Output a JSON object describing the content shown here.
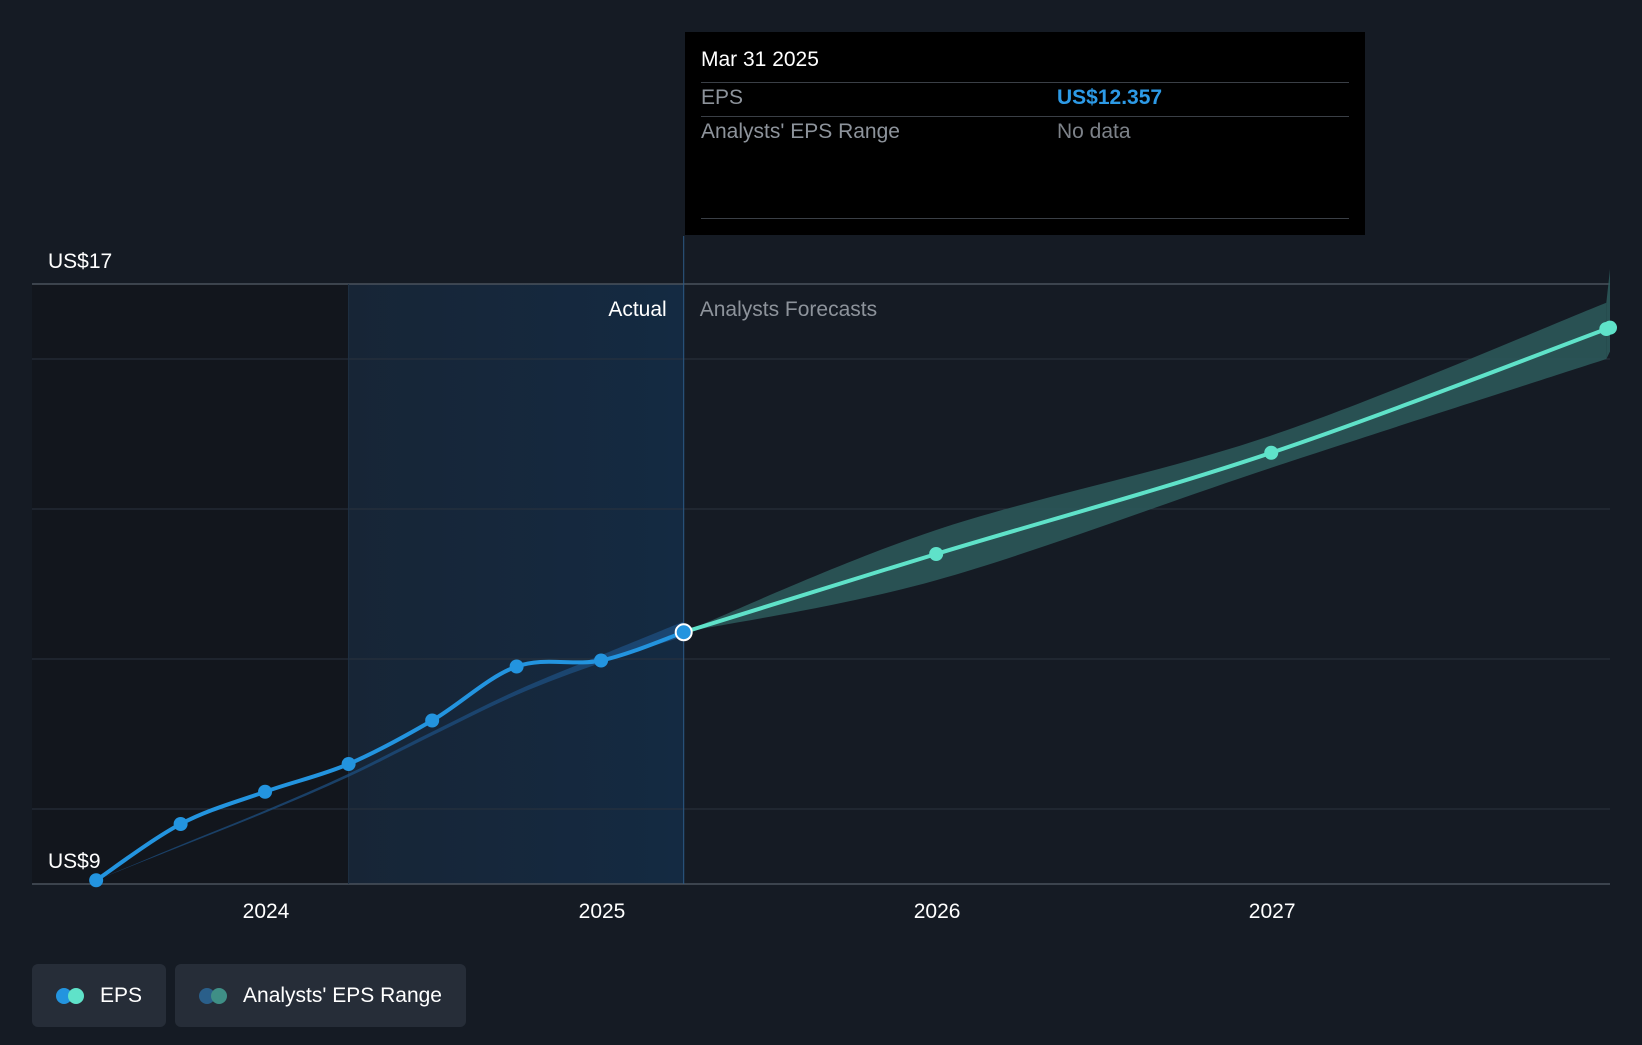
{
  "chart_data": {
    "type": "line",
    "y_axis": {
      "min": 9,
      "max": 17,
      "top_label": "US$17",
      "bottom_label": "US$9"
    },
    "x_axis": {
      "ticks": [
        "2024",
        "2025",
        "2026",
        "2027"
      ]
    },
    "regions": {
      "actual_label": "Actual",
      "forecast_label": "Analysts Forecasts"
    },
    "series": [
      {
        "name": "EPS",
        "kind": "actual",
        "color": "#2394df",
        "points": [
          {
            "x": "2023-06-30",
            "y": 9.05
          },
          {
            "x": "2023-09-30",
            "y": 9.8
          },
          {
            "x": "2023-12-31",
            "y": 10.23
          },
          {
            "x": "2024-03-31",
            "y": 10.6
          },
          {
            "x": "2024-06-30",
            "y": 11.18
          },
          {
            "x": "2024-09-30",
            "y": 11.9
          },
          {
            "x": "2024-12-31",
            "y": 11.98
          },
          {
            "x": "2025-03-31",
            "y": 12.357
          }
        ]
      },
      {
        "name": "EPS",
        "kind": "forecast",
        "color": "#5fe2c9",
        "points": [
          {
            "x": "2025-03-31",
            "y": 12.357
          },
          {
            "x": "2025-12-31",
            "y": 13.4
          },
          {
            "x": "2026-12-31",
            "y": 14.75
          },
          {
            "x": "2027-12-31",
            "y": 16.4
          }
        ]
      }
    ],
    "forecast_range": {
      "name": "Analysts' EPS Range",
      "color": "#2d5a5c",
      "points": [
        {
          "x": "2025-03-31",
          "low": 12.357,
          "high": 12.357
        },
        {
          "x": "2025-12-31",
          "low": 13.05,
          "high": 13.72
        },
        {
          "x": "2026-12-31",
          "low": 14.55,
          "high": 14.98
        },
        {
          "x": "2027-12-31",
          "low": 16.0,
          "high": 16.75
        }
      ]
    },
    "past_range_band": {
      "color": "#1e4f80",
      "points": [
        {
          "x": "2023-06-30",
          "low": 9.05,
          "high": 9.05
        },
        {
          "x": "2023-09-30",
          "low": 9.5,
          "high": 9.52
        },
        {
          "x": "2023-12-31",
          "low": 9.95,
          "high": 9.98
        },
        {
          "x": "2024-03-31",
          "low": 10.43,
          "high": 10.47
        },
        {
          "x": "2024-06-30",
          "low": 10.98,
          "high": 11.03
        },
        {
          "x": "2024-09-30",
          "low": 11.52,
          "high": 11.58
        },
        {
          "x": "2024-12-31",
          "low": 11.95,
          "high": 12.05
        },
        {
          "x": "2025-03-31",
          "low": 12.3,
          "high": 12.5
        }
      ]
    },
    "grid": true
  },
  "tooltip": {
    "date": "Mar 31 2025",
    "rows": [
      {
        "label": "EPS",
        "value": "US$12.357",
        "value_color": "#2d9ae6"
      },
      {
        "label": "Analysts' EPS Range",
        "value": "No data",
        "value_color": "#7d8289"
      }
    ]
  },
  "legend": {
    "items": [
      {
        "label": "EPS",
        "colors": [
          "#2394df",
          "#5fe2c9"
        ]
      },
      {
        "label": "Analysts' EPS Range",
        "colors": [
          "#2a5f8a",
          "#3f8f86"
        ]
      }
    ]
  }
}
